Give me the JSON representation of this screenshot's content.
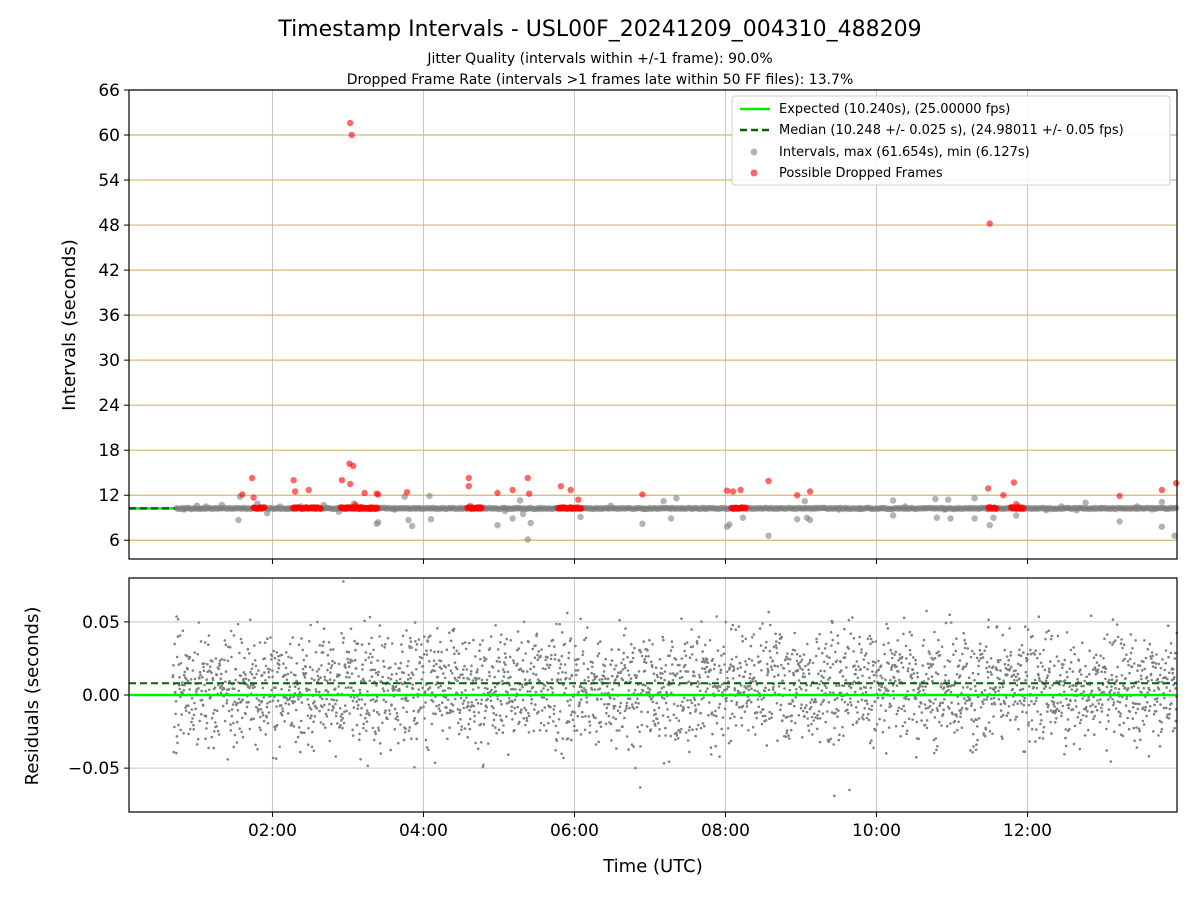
{
  "chart_data": [
    {
      "type": "scatter",
      "title": "Timestamp Intervals - USL00F_20241209_004310_488209",
      "subtitle_lines": [
        "Jitter Quality (intervals within +/-1 frame): 90.0%",
        "Dropped Frame Rate (intervals >1 frames late within 50 FF files): 13.7%"
      ],
      "xlabel": "",
      "ylabel": "Intervals (seconds)",
      "xlim_hours": [
        0.1,
        13.98
      ],
      "ylim": [
        3.5,
        66
      ],
      "yticks": [
        "6",
        "12",
        "18",
        "24",
        "30",
        "36",
        "42",
        "48",
        "54",
        "60",
        "66"
      ],
      "ytick_values": [
        6,
        12,
        18,
        24,
        30,
        36,
        42,
        48,
        54,
        60,
        66
      ],
      "grid": true,
      "legend_position": "upper-right",
      "legend": [
        "Expected (10.240s), (25.00000 fps)",
        "Median (10.248 +/- 0.025 s), (24.98011 +/- 0.05 fps)",
        "Intervals, max (61.654s), min (6.127s)",
        "Possible Dropped Frames"
      ],
      "colors": {
        "expected": "#00ee00",
        "median": "#006400",
        "intervals": "#808080",
        "dropped": "#ff0000",
        "hgrid": "#d4b870",
        "vgrid": "#c8c8c8"
      },
      "series": [
        {
          "name": "Expected (10.240s), (25.00000 fps)",
          "kind": "hline",
          "y": 10.24
        },
        {
          "name": "Median (10.248 +/- 0.025 s), (24.98011 +/- 0.05 fps)",
          "kind": "hline-dashed",
          "y": 10.248
        },
        {
          "name": "Intervals, max (61.654s), min (6.127s)",
          "kind": "scatter",
          "x_start": 0.73,
          "x_end": 13.98,
          "baseline": 10.24,
          "outliers": [
            [
              0.83,
              10.1
            ],
            [
              1.0,
              10.6
            ],
            [
              1.12,
              10.5
            ],
            [
              1.33,
              10.7
            ],
            [
              1.55,
              8.7
            ],
            [
              1.57,
              11.8
            ],
            [
              1.8,
              10.9
            ],
            [
              1.93,
              9.6
            ],
            [
              2.1,
              10.5
            ],
            [
              2.38,
              10.5
            ],
            [
              2.68,
              10.7
            ],
            [
              2.88,
              9.8
            ],
            [
              3.08,
              10.9
            ],
            [
              3.38,
              8.2
            ],
            [
              3.4,
              8.4
            ],
            [
              3.62,
              10.1
            ],
            [
              3.75,
              11.8
            ],
            [
              3.8,
              8.7
            ],
            [
              3.85,
              7.9
            ],
            [
              4.08,
              11.9
            ],
            [
              4.1,
              8.8
            ],
            [
              4.62,
              10.6
            ],
            [
              4.98,
              8.0
            ],
            [
              5.08,
              9.9
            ],
            [
              5.18,
              8.9
            ],
            [
              5.28,
              11.3
            ],
            [
              5.32,
              9.5
            ],
            [
              5.38,
              6.1
            ],
            [
              5.42,
              8.3
            ],
            [
              6.08,
              9.1
            ],
            [
              6.48,
              10.6
            ],
            [
              6.9,
              8.2
            ],
            [
              6.92,
              10.2
            ],
            [
              7.18,
              11.2
            ],
            [
              7.28,
              8.9
            ],
            [
              7.35,
              11.6
            ],
            [
              7.72,
              10.2
            ],
            [
              8.02,
              7.8
            ],
            [
              8.05,
              8.1
            ],
            [
              8.23,
              9.0
            ],
            [
              8.57,
              6.6
            ],
            [
              8.95,
              8.8
            ],
            [
              9.05,
              11.2
            ],
            [
              9.08,
              9.0
            ],
            [
              9.12,
              8.7
            ],
            [
              9.5,
              10.1
            ],
            [
              9.78,
              10.3
            ],
            [
              10.22,
              11.3
            ],
            [
              10.22,
              9.3
            ],
            [
              10.38,
              10.5
            ],
            [
              10.78,
              11.5
            ],
            [
              10.8,
              9.0
            ],
            [
              10.9,
              10.1
            ],
            [
              10.95,
              11.4
            ],
            [
              10.98,
              8.9
            ],
            [
              11.3,
              11.6
            ],
            [
              11.3,
              8.9
            ],
            [
              11.5,
              8.0
            ],
            [
              11.55,
              9.0
            ],
            [
              11.85,
              9.3
            ],
            [
              11.88,
              10.5
            ],
            [
              12.25,
              10.0
            ],
            [
              12.45,
              10.5
            ],
            [
              12.65,
              10.0
            ],
            [
              12.77,
              11.0
            ],
            [
              12.98,
              10.3
            ],
            [
              13.22,
              8.5
            ],
            [
              13.45,
              10.5
            ],
            [
              13.65,
              10.1
            ],
            [
              13.78,
              7.8
            ],
            [
              13.78,
              11.1
            ],
            [
              13.95,
              6.6
            ]
          ]
        },
        {
          "name": "Possible Dropped Frames",
          "kind": "scatter",
          "bands": [
            [
              1.75,
              1.9
            ],
            [
              2.27,
              2.65
            ],
            [
              2.9,
              3.4
            ],
            [
              4.58,
              4.78
            ],
            [
              5.78,
              6.1
            ],
            [
              8.08,
              8.28
            ],
            [
              11.48,
              11.6
            ],
            [
              11.78,
              11.95
            ]
          ],
          "band_y": 10.3,
          "points": [
            [
              1.6,
              12.1
            ],
            [
              1.73,
              14.3
            ],
            [
              1.75,
              11.7
            ],
            [
              2.28,
              14.0
            ],
            [
              2.3,
              12.5
            ],
            [
              2.48,
              12.7
            ],
            [
              2.92,
              14.0
            ],
            [
              3.02,
              16.2
            ],
            [
              3.03,
              61.6
            ],
            [
              3.05,
              60.0
            ],
            [
              3.07,
              15.9
            ],
            [
              3.03,
              13.5
            ],
            [
              3.1,
              10.7
            ],
            [
              3.22,
              12.3
            ],
            [
              3.38,
              12.2
            ],
            [
              3.4,
              12.1
            ],
            [
              3.78,
              12.4
            ],
            [
              4.6,
              14.3
            ],
            [
              4.6,
              13.2
            ],
            [
              4.98,
              12.3
            ],
            [
              5.18,
              12.7
            ],
            [
              5.38,
              14.3
            ],
            [
              5.4,
              12.2
            ],
            [
              5.82,
              13.2
            ],
            [
              5.95,
              12.7
            ],
            [
              6.05,
              11.4
            ],
            [
              6.9,
              12.1
            ],
            [
              8.02,
              12.6
            ],
            [
              8.1,
              12.5
            ],
            [
              8.2,
              12.7
            ],
            [
              8.57,
              13.9
            ],
            [
              8.95,
              12.0
            ],
            [
              9.12,
              12.5
            ],
            [
              11.48,
              12.9
            ],
            [
              11.5,
              48.2
            ],
            [
              11.68,
              12.0
            ],
            [
              11.82,
              13.7
            ],
            [
              11.85,
              10.8
            ],
            [
              13.22,
              11.9
            ],
            [
              13.78,
              12.7
            ],
            [
              13.97,
              13.6
            ]
          ]
        }
      ]
    },
    {
      "type": "scatter",
      "xlabel": "Time (UTC)",
      "ylabel": "Residuals (seconds)",
      "xlim_hours": [
        0.1,
        13.98
      ],
      "xtick_values_hours": [
        2,
        4,
        6,
        8,
        10,
        12
      ],
      "xticks": [
        "02:00",
        "04:00",
        "06:00",
        "08:00",
        "10:00",
        "12:00"
      ],
      "ylim": [
        -0.08,
        0.08
      ],
      "yticks": [
        "−0.05",
        "0.00",
        "0.05"
      ],
      "ytick_values": [
        -0.05,
        0.0,
        0.05
      ],
      "grid": true,
      "series": [
        {
          "kind": "hline",
          "y": 0.0,
          "color": "#00ee00"
        },
        {
          "kind": "hline-dashed",
          "y": 0.008,
          "color": "#006400"
        },
        {
          "kind": "scatter",
          "x_start": 0.68,
          "x_end": 13.98,
          "spread": 0.025,
          "color": "#808080"
        }
      ]
    }
  ]
}
